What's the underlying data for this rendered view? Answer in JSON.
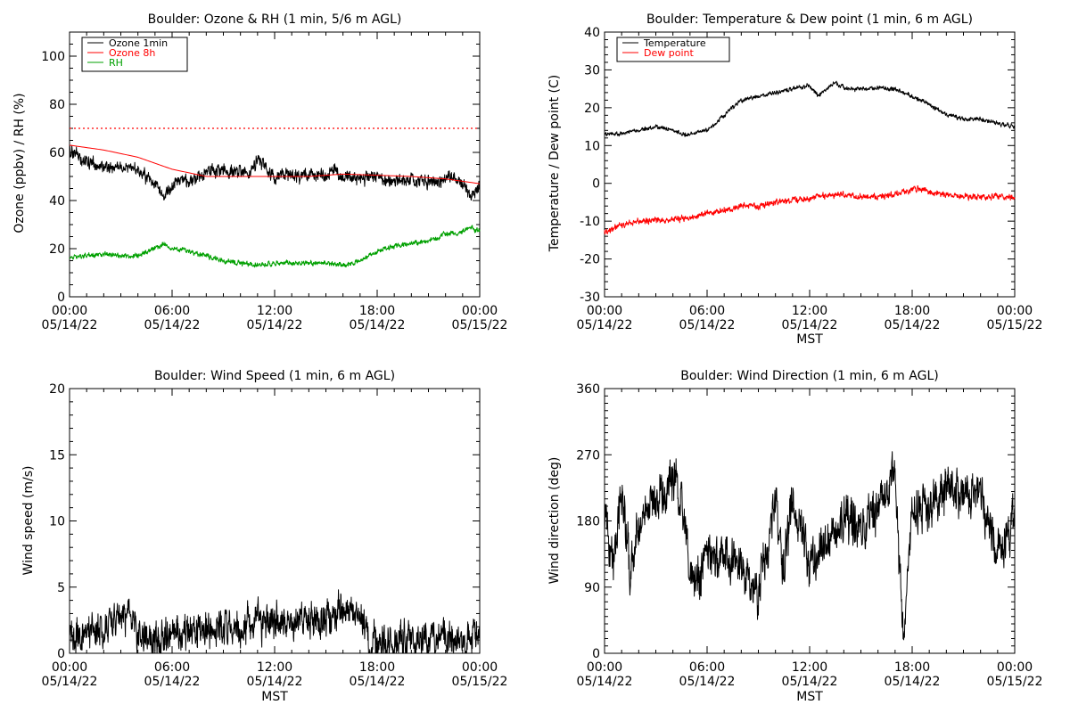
{
  "colors": {
    "axis": "#000000",
    "ozone_1min": "#000000",
    "ozone_8h": "#ff0000",
    "rh": "#00a000",
    "temperature": "#000000",
    "dewpoint": "#ff0000",
    "wind": "#000000",
    "reference_line": "#ff0000"
  },
  "chart_data": [
    {
      "id": "ozone-rh",
      "type": "line",
      "title": "Boulder: Ozone & RH (1 min, 5/6 m AGL)",
      "ylabel": "Ozone (ppbv) / RH (%)",
      "xlabel": "",
      "xlim": [
        0,
        24
      ],
      "ylim": [
        0,
        110
      ],
      "x_ticks": [
        0,
        6,
        12,
        18,
        24
      ],
      "x_tick_labels": [
        [
          "00:00",
          "05/14/22"
        ],
        [
          "06:00",
          "05/14/22"
        ],
        [
          "12:00",
          "05/14/22"
        ],
        [
          "18:00",
          "05/14/22"
        ],
        [
          "00:00",
          "05/15/22"
        ]
      ],
      "y_ticks": [
        0,
        20,
        40,
        60,
        80,
        100
      ],
      "y_minor_step": 5,
      "grid": false,
      "legend_position": "top-left",
      "reference_lines": [
        {
          "y": 70,
          "style": "dotted",
          "color": "red"
        }
      ],
      "series": [
        {
          "name": "Ozone 1min",
          "color": "black",
          "noise": 2.4,
          "x": [
            0,
            1,
            2,
            3,
            4,
            4.5,
            5,
            5.5,
            6,
            6.5,
            7,
            8,
            9,
            10,
            10.5,
            11,
            11.5,
            12,
            13,
            14,
            15,
            15.5,
            16,
            17,
            18,
            19,
            20,
            21,
            22,
            22.5,
            23,
            23.5,
            24
          ],
          "y": [
            60,
            56,
            54,
            54,
            53,
            50,
            47,
            42,
            47,
            48,
            48,
            52,
            53,
            52,
            51,
            57,
            53,
            49,
            51,
            50,
            51,
            53,
            50,
            49,
            50,
            48,
            49,
            48,
            49,
            50,
            46,
            42,
            46
          ]
        },
        {
          "name": "Ozone 8h",
          "color": "red",
          "noise": 0,
          "x": [
            0,
            2,
            4,
            6,
            8,
            10,
            12,
            14,
            16,
            18,
            20,
            22,
            24
          ],
          "y": [
            63,
            61,
            58,
            53,
            50,
            50,
            50,
            50,
            51,
            50.5,
            50,
            49,
            47
          ]
        },
        {
          "name": "RH",
          "color": "green",
          "noise": 0.9,
          "x": [
            0,
            1,
            2,
            3,
            4,
            5,
            5.5,
            6,
            7,
            8,
            9,
            10,
            11,
            12,
            13,
            14,
            15,
            16,
            17,
            18,
            19,
            20,
            21,
            22,
            23,
            23.5,
            24
          ],
          "y": [
            16,
            17,
            18,
            17,
            17,
            20,
            22,
            20,
            19,
            17,
            15,
            14,
            13,
            14,
            14,
            14,
            14,
            13,
            15,
            19,
            21,
            22,
            23,
            26,
            27,
            29,
            27
          ]
        }
      ]
    },
    {
      "id": "temp-dewpoint",
      "type": "line",
      "title": "Boulder: Temperature & Dew point (1 min, 6 m AGL)",
      "ylabel": "Temperature / Dew point (C)",
      "xlabel": "MST",
      "xlim": [
        0,
        24
      ],
      "ylim": [
        -30,
        40
      ],
      "x_ticks": [
        0,
        6,
        12,
        18,
        24
      ],
      "x_tick_labels": [
        [
          "00:00",
          "05/14/22"
        ],
        [
          "06:00",
          "05/14/22"
        ],
        [
          "12:00",
          "05/14/22"
        ],
        [
          "18:00",
          "05/14/22"
        ],
        [
          "00:00",
          "05/15/22"
        ]
      ],
      "y_ticks": [
        -30,
        -20,
        -10,
        0,
        10,
        20,
        30,
        40
      ],
      "y_minor_step": 2,
      "grid": false,
      "legend_position": "top-left",
      "reference_lines": [],
      "series": [
        {
          "name": "Temperature",
          "color": "black",
          "noise": 0.5,
          "x": [
            0,
            1,
            2,
            3,
            4,
            4.5,
            5,
            6,
            7,
            8,
            9,
            10,
            11,
            12,
            12.5,
            13,
            13.5,
            14,
            15,
            16,
            17,
            18,
            19,
            20,
            21,
            22,
            23,
            24
          ],
          "y": [
            13,
            13,
            14,
            15,
            14,
            13,
            13,
            14,
            18,
            22,
            23,
            24,
            25,
            26,
            23,
            25,
            27,
            25,
            25,
            25,
            25,
            23,
            21,
            18,
            17,
            17,
            16,
            15
          ]
        },
        {
          "name": "Dew point",
          "color": "red",
          "noise": 0.7,
          "x": [
            0,
            1,
            2,
            3,
            4,
            5,
            6,
            7,
            8,
            9,
            10,
            11,
            12,
            13,
            14,
            15,
            16,
            17,
            18,
            18.5,
            19,
            20,
            21,
            22,
            23,
            24
          ],
          "y": [
            -13,
            -11,
            -10,
            -10,
            -9.5,
            -9,
            -8,
            -7,
            -6,
            -6,
            -5,
            -4.5,
            -4,
            -3,
            -3,
            -3.5,
            -3.5,
            -3,
            -1.5,
            -1,
            -2.5,
            -3,
            -3.5,
            -3.5,
            -3.5,
            -4
          ]
        }
      ]
    },
    {
      "id": "wind-speed",
      "type": "line",
      "title": "Boulder: Wind Speed (1 min, 6 m AGL)",
      "ylabel": "Wind speed (m/s)",
      "xlabel": "MST",
      "xlim": [
        0,
        24
      ],
      "ylim": [
        0,
        20
      ],
      "x_ticks": [
        0,
        6,
        12,
        18,
        24
      ],
      "x_tick_labels": [
        [
          "00:00",
          "05/14/22"
        ],
        [
          "06:00",
          "05/14/22"
        ],
        [
          "12:00",
          "05/14/22"
        ],
        [
          "18:00",
          "05/14/22"
        ],
        [
          "00:00",
          "05/15/22"
        ]
      ],
      "y_ticks": [
        0,
        5,
        10,
        15,
        20
      ],
      "y_minor_step": 1,
      "grid": false,
      "legend_position": "none",
      "reference_lines": [],
      "series": [
        {
          "name": "",
          "color": "black",
          "noise": 1.2,
          "clip_min": 0,
          "x": [
            0,
            1,
            2,
            3,
            3.5,
            4,
            4.5,
            5,
            6,
            7,
            8,
            9,
            10,
            11,
            12,
            13,
            14,
            15,
            15.5,
            16,
            17,
            17.5,
            18,
            19,
            20,
            21,
            22,
            23,
            24
          ],
          "y": [
            1,
            1.5,
            2,
            2.5,
            3,
            1.5,
            1,
            1,
            1.5,
            1.5,
            2,
            2,
            2,
            2.5,
            2.5,
            2.5,
            2.5,
            2.5,
            3,
            3.5,
            3,
            1,
            1,
            1,
            1,
            1,
            1,
            1,
            1
          ]
        }
      ]
    },
    {
      "id": "wind-direction",
      "type": "line",
      "title": "Boulder: Wind Direction (1 min, 6 m AGL)",
      "ylabel": "Wind direction (deg)",
      "xlabel": "MST",
      "xlim": [
        0,
        24
      ],
      "ylim": [
        0,
        360
      ],
      "x_ticks": [
        0,
        6,
        12,
        18,
        24
      ],
      "x_tick_labels": [
        [
          "00:00",
          "05/14/22"
        ],
        [
          "06:00",
          "05/14/22"
        ],
        [
          "12:00",
          "05/14/22"
        ],
        [
          "18:00",
          "05/14/22"
        ],
        [
          "00:00",
          "05/15/22"
        ]
      ],
      "y_ticks": [
        0,
        90,
        180,
        270,
        360
      ],
      "y_minor_step": 10,
      "grid": false,
      "legend_position": "none",
      "reference_lines": [],
      "series": [
        {
          "name": "",
          "color": "black",
          "noise": 28,
          "clip_min": 0,
          "clip_max": 360,
          "x": [
            0,
            0.5,
            1,
            1.5,
            2,
            3,
            4,
            4.5,
            5,
            5.5,
            6,
            7,
            8,
            9,
            9.5,
            10,
            10.5,
            11,
            12,
            13,
            14,
            15,
            16,
            16.5,
            17,
            17.5,
            18,
            19,
            20,
            21,
            22,
            23,
            24
          ],
          "y": [
            200,
            120,
            220,
            120,
            180,
            210,
            230,
            220,
            110,
            100,
            140,
            130,
            120,
            80,
            150,
            200,
            110,
            210,
            130,
            140,
            180,
            180,
            200,
            230,
            240,
            20,
            200,
            190,
            220,
            220,
            210,
            130,
            180
          ]
        }
      ]
    }
  ]
}
